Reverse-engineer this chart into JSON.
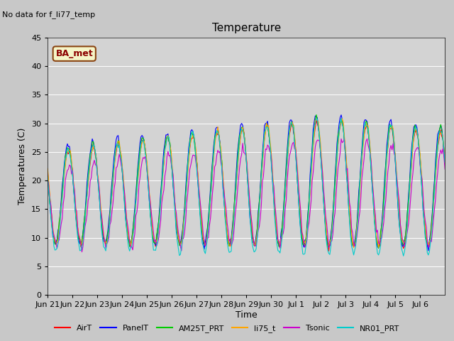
{
  "title": "Temperature",
  "ylabel": "Temperatures (C)",
  "xlabel": "Time",
  "note": "No data for f_li77_temp",
  "ba_met_label": "BA_met",
  "ylim": [
    0,
    45
  ],
  "yticks": [
    0,
    5,
    10,
    15,
    20,
    25,
    30,
    35,
    40,
    45
  ],
  "fig_bg_color": "#c8c8c8",
  "plot_bg_color": "#d3d3d3",
  "series": [
    {
      "name": "AirT",
      "color": "#ff0000"
    },
    {
      "name": "PanelT",
      "color": "#0000ff"
    },
    {
      "name": "AM25T_PRT",
      "color": "#00cc00"
    },
    {
      "name": "li75_t",
      "color": "#ffa500"
    },
    {
      "name": "Tsonic",
      "color": "#cc00cc"
    },
    {
      "name": "NR01_PRT",
      "color": "#00cccc"
    }
  ],
  "xtick_labels": [
    "Jun 21",
    "Jun 22",
    "Jun 23",
    "Jun 24",
    "Jun 25",
    "Jun 26",
    "Jun 27",
    "Jun 28",
    "Jun 29",
    "Jun 30",
    "Jul 1",
    "Jul 2",
    "Jul 3",
    "Jul 4",
    "Jul 5",
    "Jul 6"
  ],
  "n_days": 16
}
